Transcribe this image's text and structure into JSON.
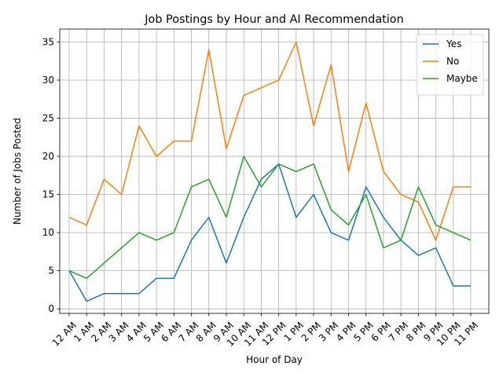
{
  "chart_data": {
    "type": "line",
    "title": "Job Postings by Hour and AI Recommendation",
    "xlabel": "Hour of Day",
    "ylabel": "Number of Jobs Posted",
    "categories": [
      "12 AM",
      "1 AM",
      "2 AM",
      "3 AM",
      "4 AM",
      "5 AM",
      "6 AM",
      "7 AM",
      "8 AM",
      "9 AM",
      "10 AM",
      "11 AM",
      "12 PM",
      "1 PM",
      "2 PM",
      "3 PM",
      "4 PM",
      "5 PM",
      "6 PM",
      "7 PM",
      "8 PM",
      "9 PM",
      "10 PM",
      "11 PM"
    ],
    "ylim": [
      -0.6,
      36.7
    ],
    "yticks": [
      0,
      5,
      10,
      15,
      20,
      25,
      30,
      35
    ],
    "grid": true,
    "legend_position": "upper right",
    "series": [
      {
        "name": "Yes",
        "color": "#1f77b4",
        "values": [
          5,
          1,
          2,
          2,
          2,
          4,
          4,
          9,
          12,
          6,
          12,
          17,
          19,
          12,
          15,
          10,
          9,
          16,
          12,
          9,
          7,
          8,
          3,
          3
        ]
      },
      {
        "name": "No",
        "color": "#ff7f0e",
        "values": [
          12,
          11,
          17,
          15,
          24,
          20,
          22,
          22,
          34,
          21,
          28,
          29,
          30,
          35,
          24,
          32,
          18,
          27,
          18,
          15,
          14,
          9,
          16,
          16
        ]
      },
      {
        "name": "Maybe",
        "color": "#2ca02c",
        "values": [
          5,
          4,
          6,
          8,
          10,
          9,
          10,
          16,
          17,
          12,
          20,
          16,
          19,
          18,
          19,
          13,
          11,
          15,
          8,
          9,
          16,
          11,
          10,
          9
        ]
      }
    ]
  }
}
